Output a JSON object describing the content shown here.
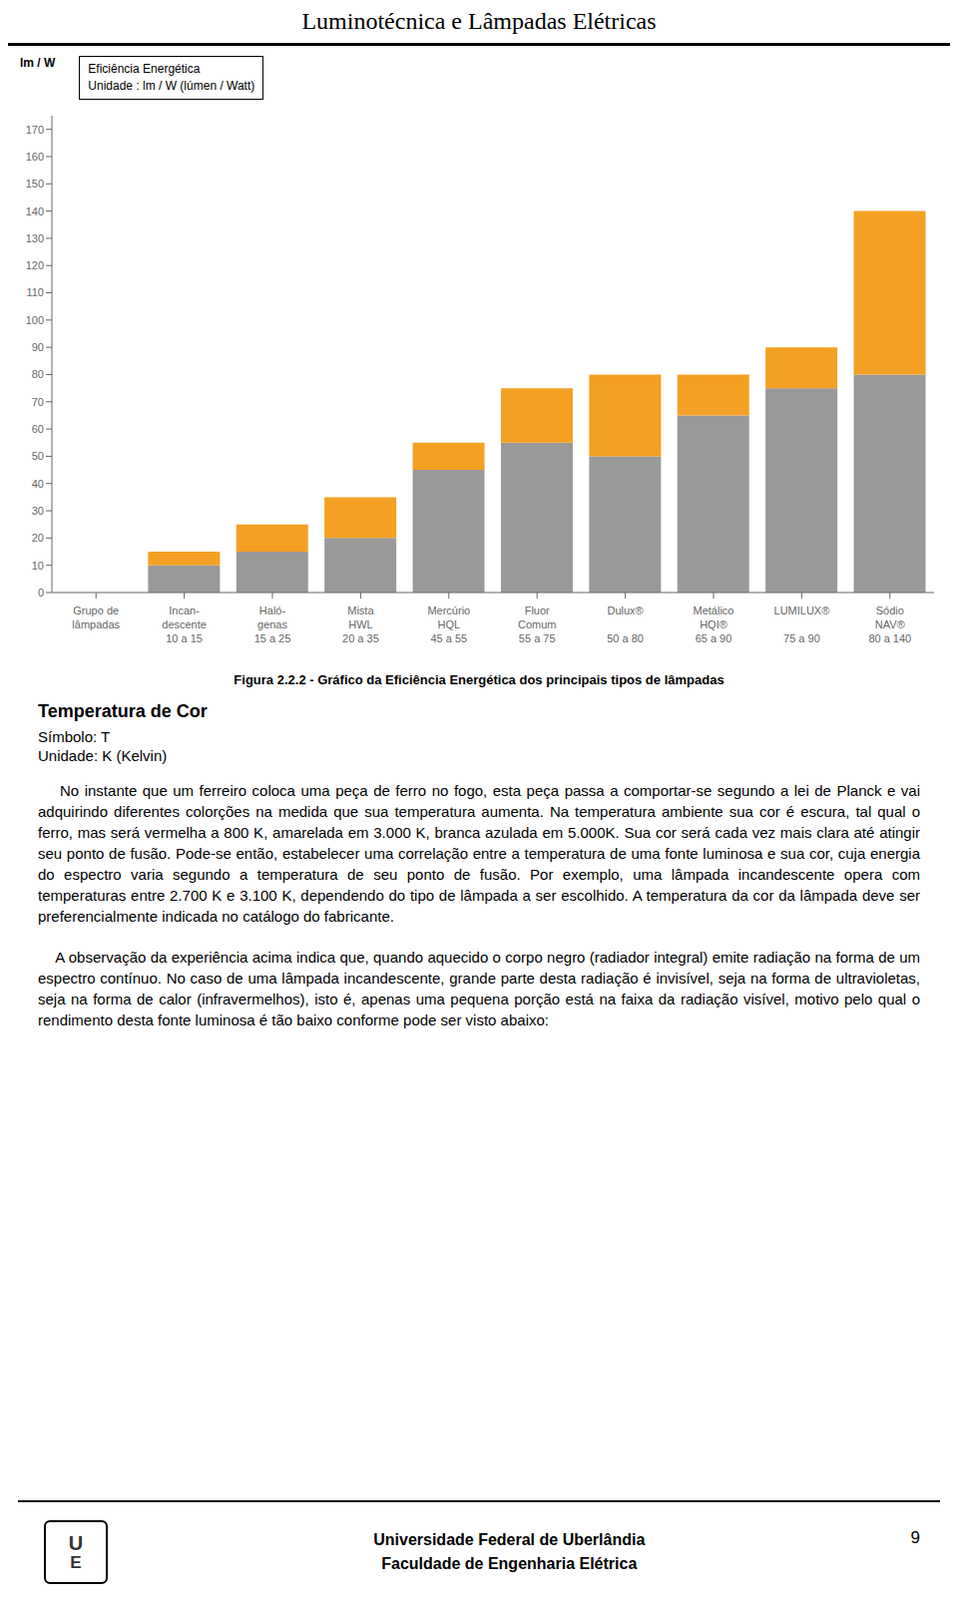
{
  "page": {
    "title": "Luminotécnica e Lâmpadas Elétricas",
    "section_title": "Temperatura de Cor",
    "symbol_line": "Símbolo: T",
    "unit_line": "Unidade: K (Kelvin)",
    "paragraphs": [
      "    No instante que um ferreiro coloca uma peça de ferro no fogo, esta peça passa a comportar-se segundo a lei de Planck e vai adquirindo diferentes colorções na medida que sua temperatura aumenta. Na temperatura ambiente sua cor é escura, tal qual o ferro, mas será vermelha a 800 K, amarelada em 3.000 K, branca azulada em 5.000K. Sua cor será cada vez mais clara até atingir seu ponto de fusão. Pode-se então, estabelecer uma correlação entre a temperatura de uma fonte luminosa e sua cor, cuja energia do espectro varia segundo a temperatura de seu ponto de fusão. Por exemplo, uma lâmpada incandescente opera com temperaturas entre 2.700 K e 3.100 K, dependendo do tipo de lâmpada a ser escolhido. A temperatura da cor da lâmpada deve ser preferencialmente indicada no catálogo do fabricante.",
      "    A observação da experiência acima indica que, quando aquecido o corpo negro (radiador integral) emite radiação na forma de um espectro contínuo. No caso de uma lâmpada incandescente, grande parte desta radiação é invisível, seja na forma de ultravioletas, seja na forma de calor (infravermelhos), isto é, apenas uma pequena porção está na faixa da radiação visível, motivo pelo qual o rendimento desta fonte luminosa é tão baixo conforme pode ser visto abaixo:"
    ],
    "logo_text": [
      "U",
      "E"
    ],
    "footer": [
      "Universidade Federal de Uberlândia",
      "Faculdade de Engenharia Elétrica"
    ],
    "page_number": "9"
  },
  "chart_data": {
    "type": "bar",
    "title": "Figura 2.2.2 - Gráfico da Eficiência Energética dos principais tipos de lâmpadas",
    "ylabel": "lm / W",
    "annotations": [
      "Eficiência Energética\nUnidade : lm / W (lúmen / Watt)"
    ],
    "categories": [
      "Grupo de\nlâmpadas",
      "Incan-\ndescente\n10 a 15",
      "Haló-\ngenas\n15 a 25",
      "Mista\nHWL\n20 a 35",
      "Mercúrio\nHQL\n45 a 55",
      "Fluor\nComum\n55 a 75",
      "Dulux®\n\n50 a 80",
      "Metálico\nHQI®\n65 a 90",
      "LUMILUX®\n\n75 a 90",
      "Sódio\nNAV®\n80 a 140"
    ],
    "series": [
      {
        "color": "#999999",
        "values": [
          0,
          10,
          15,
          20,
          45,
          55,
          50,
          65,
          75,
          80
        ]
      },
      {
        "color": "#F4A024",
        "values": [
          0,
          5,
          10,
          15,
          10,
          20,
          30,
          15,
          15,
          60
        ]
      }
    ],
    "stacked": true,
    "ylim": [
      0,
      175
    ],
    "yticks": [
      0,
      10,
      20,
      30,
      40,
      50,
      60,
      70,
      80,
      90,
      100,
      110,
      120,
      130,
      140,
      150,
      160,
      170
    ],
    "grid": false
  }
}
